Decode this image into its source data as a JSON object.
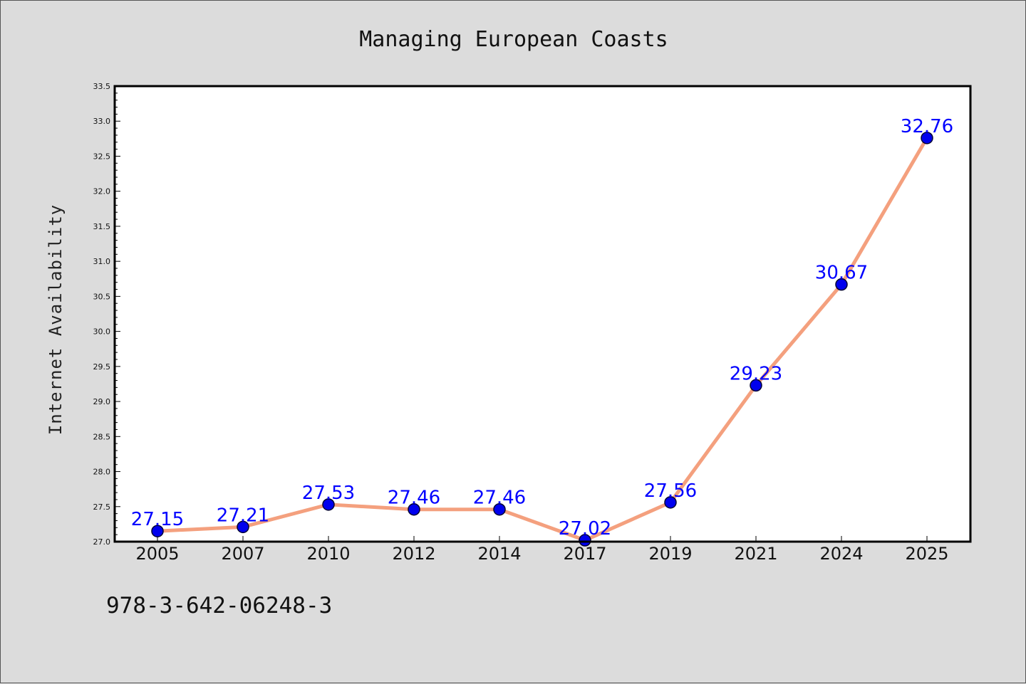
{
  "chart_data": {
    "type": "line",
    "title": "Managing European Coasts",
    "xlabel": "",
    "ylabel": "Internet Availability",
    "categories": [
      "2005",
      "2007",
      "2010",
      "2012",
      "2014",
      "2017",
      "2019",
      "2021",
      "2024",
      "2025"
    ],
    "series": [
      {
        "values": [
          27.15,
          27.21,
          27.53,
          27.46,
          27.46,
          27.02,
          27.56,
          29.23,
          30.67,
          32.76
        ],
        "data_labels": [
          "27.15",
          "27.21",
          "27.53",
          "27.46",
          "27.46",
          "27.02",
          "27.56",
          "29.23",
          "30.67",
          "32.76"
        ]
      }
    ],
    "ylim": [
      27.0,
      33.5
    ],
    "yticks": [
      "27.0",
      "27.5",
      "28.0",
      "28.5",
      "29.0",
      "29.5",
      "30.0",
      "30.5",
      "31.0",
      "31.5",
      "32.0",
      "32.5",
      "33.0",
      "33.5"
    ],
    "grid": false,
    "legend": "none",
    "colors": {
      "line": "#f4a07e",
      "marker": "#0000ee",
      "marker_edge": "#000033",
      "data_label": "#0000ff",
      "plot_background": "#ffffff",
      "page_background": "#dcdcdc"
    }
  },
  "footer": {
    "code": "978-3-642-06248-3"
  }
}
